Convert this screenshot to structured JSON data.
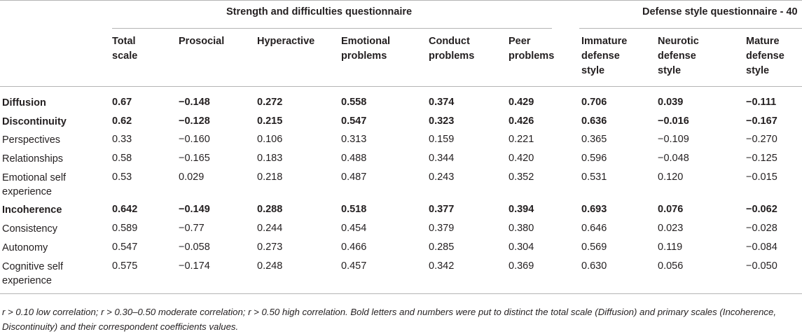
{
  "groups": [
    {
      "title": "Strength and difficulties questionnaire"
    },
    {
      "title": "Defense style questionnaire - 40"
    }
  ],
  "columns": [
    "Total\nscale",
    "Prosocial",
    "Hyperactive",
    "Emotional\nproblems",
    "Conduct\nproblems",
    "Peer\nproblems",
    "Immature\ndefense\nstyle",
    "Neurotic\ndefense\nstyle",
    "Mature\ndefense\nstyle"
  ],
  "rows": [
    {
      "label": "Diffusion",
      "bold": true,
      "values": [
        "0.67",
        "−0.148",
        "0.272",
        "0.558",
        "0.374",
        "0.429",
        "0.706",
        "0.039",
        "−0.111"
      ]
    },
    {
      "label": "Discontinuity",
      "bold": true,
      "values": [
        "0.62",
        "−0.128",
        "0.215",
        "0.547",
        "0.323",
        "0.426",
        "0.636",
        "−0.016",
        "−0.167"
      ]
    },
    {
      "label": "Perspectives",
      "bold": false,
      "values": [
        "0.33",
        "−0.160",
        "0.106",
        "0.313",
        "0.159",
        "0.221",
        "0.365",
        "−0.109",
        "−0.270"
      ]
    },
    {
      "label": "Relationships",
      "bold": false,
      "values": [
        "0.58",
        "−0.165",
        "0.183",
        "0.488",
        "0.344",
        "0.420",
        "0.596",
        "−0.048",
        "−0.125"
      ]
    },
    {
      "label": "Emotional self\nexperience",
      "bold": false,
      "values": [
        "0.53",
        "0.029",
        "0.218",
        "0.487",
        "0.243",
        "0.352",
        "0.531",
        "0.120",
        "−0.015"
      ]
    },
    {
      "label": "Incoherence",
      "bold": true,
      "values": [
        "0.642",
        "−0.149",
        "0.288",
        "0.518",
        "0.377",
        "0.394",
        "0.693",
        "0.076",
        "−0.062"
      ]
    },
    {
      "label": "Consistency",
      "bold": false,
      "values": [
        "0.589",
        "−0.77",
        "0.244",
        "0.454",
        "0.379",
        "0.380",
        "0.646",
        "0.023",
        "−0.028"
      ]
    },
    {
      "label": "Autonomy",
      "bold": false,
      "values": [
        "0.547",
        "−0.058",
        "0.273",
        "0.466",
        "0.285",
        "0.304",
        "0.569",
        "0.119",
        "−0.084"
      ]
    },
    {
      "label": "Cognitive self\nexperience",
      "bold": false,
      "values": [
        "0.575",
        "−0.174",
        "0.248",
        "0.457",
        "0.342",
        "0.369",
        "0.630",
        "0.056",
        "−0.050"
      ]
    }
  ],
  "footnote": "r > 0.10 low correlation; r > 0.30–0.50 moderate correlation; r > 0.50 high correlation. Bold letters and numbers were put to distinct the total scale (Diffusion) and primary scales (Incoherence, Discontinuity) and their correspondent coefficients values."
}
